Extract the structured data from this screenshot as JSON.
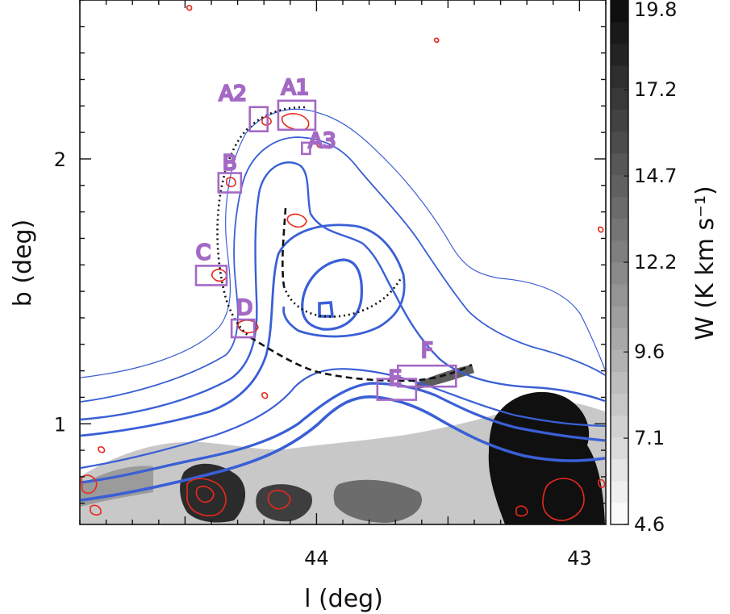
{
  "chart_data": {
    "type": "heatmap",
    "xlabel": "l (deg)",
    "ylabel": "b (deg)",
    "xlim": [
      44.9,
      42.9
    ],
    "ylim": [
      0.62,
      2.6
    ],
    "x_ticks": [
      44,
      43
    ],
    "y_ticks": [
      1,
      2
    ],
    "colorbar": {
      "label": "W (K km s⁻¹)",
      "range": [
        4.6,
        19.8
      ],
      "ticks": [
        "19.8",
        "17.2",
        "14.7",
        "12.2",
        "9.6",
        "7.1",
        "4.6"
      ]
    },
    "colors": {
      "contour": "#3a5fd6",
      "cloud": "#e8291c",
      "box": "#a469c4",
      "arc": "#111111"
    },
    "regions": [
      {
        "label": "A1",
        "l": 44.075,
        "b": 2.165
      },
      {
        "label": "A2",
        "l": 44.22,
        "b": 2.15
      },
      {
        "label": "A3",
        "l": 44.04,
        "b": 2.04
      },
      {
        "label": "B",
        "l": 44.33,
        "b": 1.91
      },
      {
        "label": "C",
        "l": 44.4,
        "b": 1.56
      },
      {
        "label": "D",
        "l": 44.28,
        "b": 1.36
      },
      {
        "label": "E",
        "l": 43.695,
        "b": 1.13
      },
      {
        "label": "F",
        "l": 43.58,
        "b": 1.18
      }
    ]
  }
}
